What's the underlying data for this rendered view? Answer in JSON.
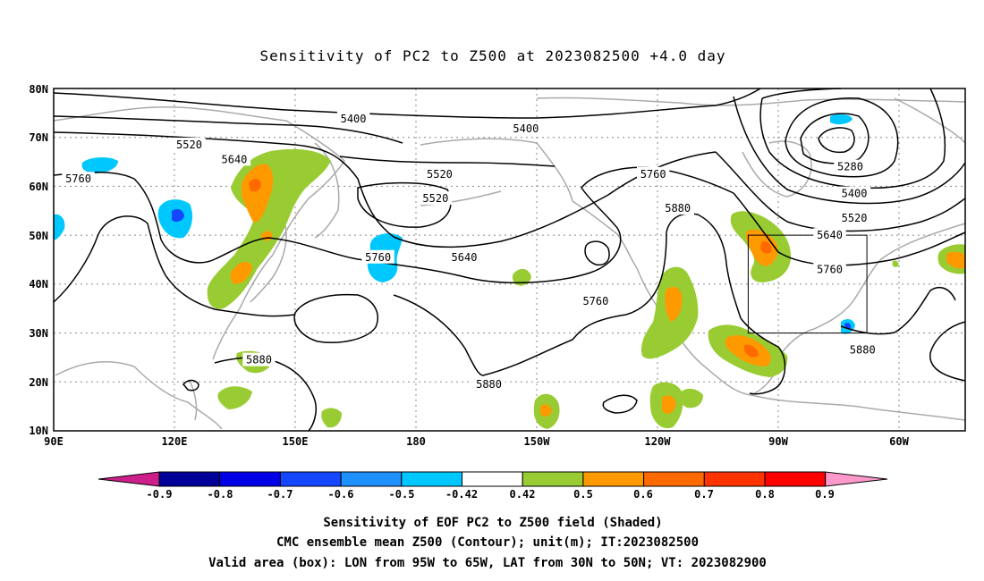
{
  "title": "Sensitivity of PC2 to Z500 at 2023082500 +4.0 day",
  "lat_ticks": [
    "80N",
    "70N",
    "60N",
    "50N",
    "40N",
    "30N",
    "20N",
    "10N"
  ],
  "lon_ticks": [
    "90E",
    "120E",
    "150E",
    "180",
    "150W",
    "120W",
    "90W",
    "60W"
  ],
  "contour_labels": [
    {
      "text": "5400",
      "lon": 163,
      "lat": 73.8
    },
    {
      "text": "5400",
      "lon": -155,
      "lat": 71.8
    },
    {
      "text": "5520",
      "lon": 123,
      "lat": 68.5
    },
    {
      "text": "5640",
      "lon": 134,
      "lat": 65.5
    },
    {
      "text": "5520",
      "lon": -176,
      "lat": 62.5
    },
    {
      "text": "5760",
      "lon": 96,
      "lat": 61.5
    },
    {
      "text": "5520",
      "lon": -177,
      "lat": 57.5
    },
    {
      "text": "5760",
      "lon": -124,
      "lat": 62.5
    },
    {
      "text": "5880",
      "lon": -118,
      "lat": 55.5
    },
    {
      "text": "5640",
      "lon": -170,
      "lat": 45.5
    },
    {
      "text": "5760",
      "lon": 169,
      "lat": 45.5
    },
    {
      "text": "5760",
      "lon": -138,
      "lat": 36.5
    },
    {
      "text": "5280",
      "lon": -76,
      "lat": 64
    },
    {
      "text": "5400",
      "lon": -75,
      "lat": 58.5
    },
    {
      "text": "5520",
      "lon": -75,
      "lat": 53.5
    },
    {
      "text": "5640",
      "lon": -81,
      "lat": 50
    },
    {
      "text": "5760",
      "lon": -81,
      "lat": 43
    },
    {
      "text": "5880",
      "lon": -73,
      "lat": 26.5
    },
    {
      "text": "5880",
      "lon": -164,
      "lat": 19.5
    },
    {
      "text": "5880",
      "lon": 140,
      "lat": 24.5
    }
  ],
  "colorbar": {
    "labels": [
      "-0.9",
      "-0.8",
      "-0.7",
      "-0.6",
      "-0.5",
      "-0.42",
      "0.42",
      "0.5",
      "0.6",
      "0.7",
      "0.8",
      "0.9"
    ],
    "colors": [
      "#000099",
      "#0000e6",
      "#1447ff",
      "#1e90ff",
      "#00c8ff",
      "#ffffff",
      "#99cc33",
      "#ff9900",
      "#ff6a00",
      "#ff3300",
      "#ff0000"
    ],
    "left_end": "#cc1f8a",
    "right_end": "#ff99cc"
  },
  "captions": [
    "Sensitivity of EOF PC2 to Z500 field (Shaded)",
    "CMC ensemble mean Z500 (Contour); unit(m); IT:2023082500",
    "Valid area (box): LON from 95W to 65W, LAT from 30N to 50N; VT: 2023082900"
  ]
}
